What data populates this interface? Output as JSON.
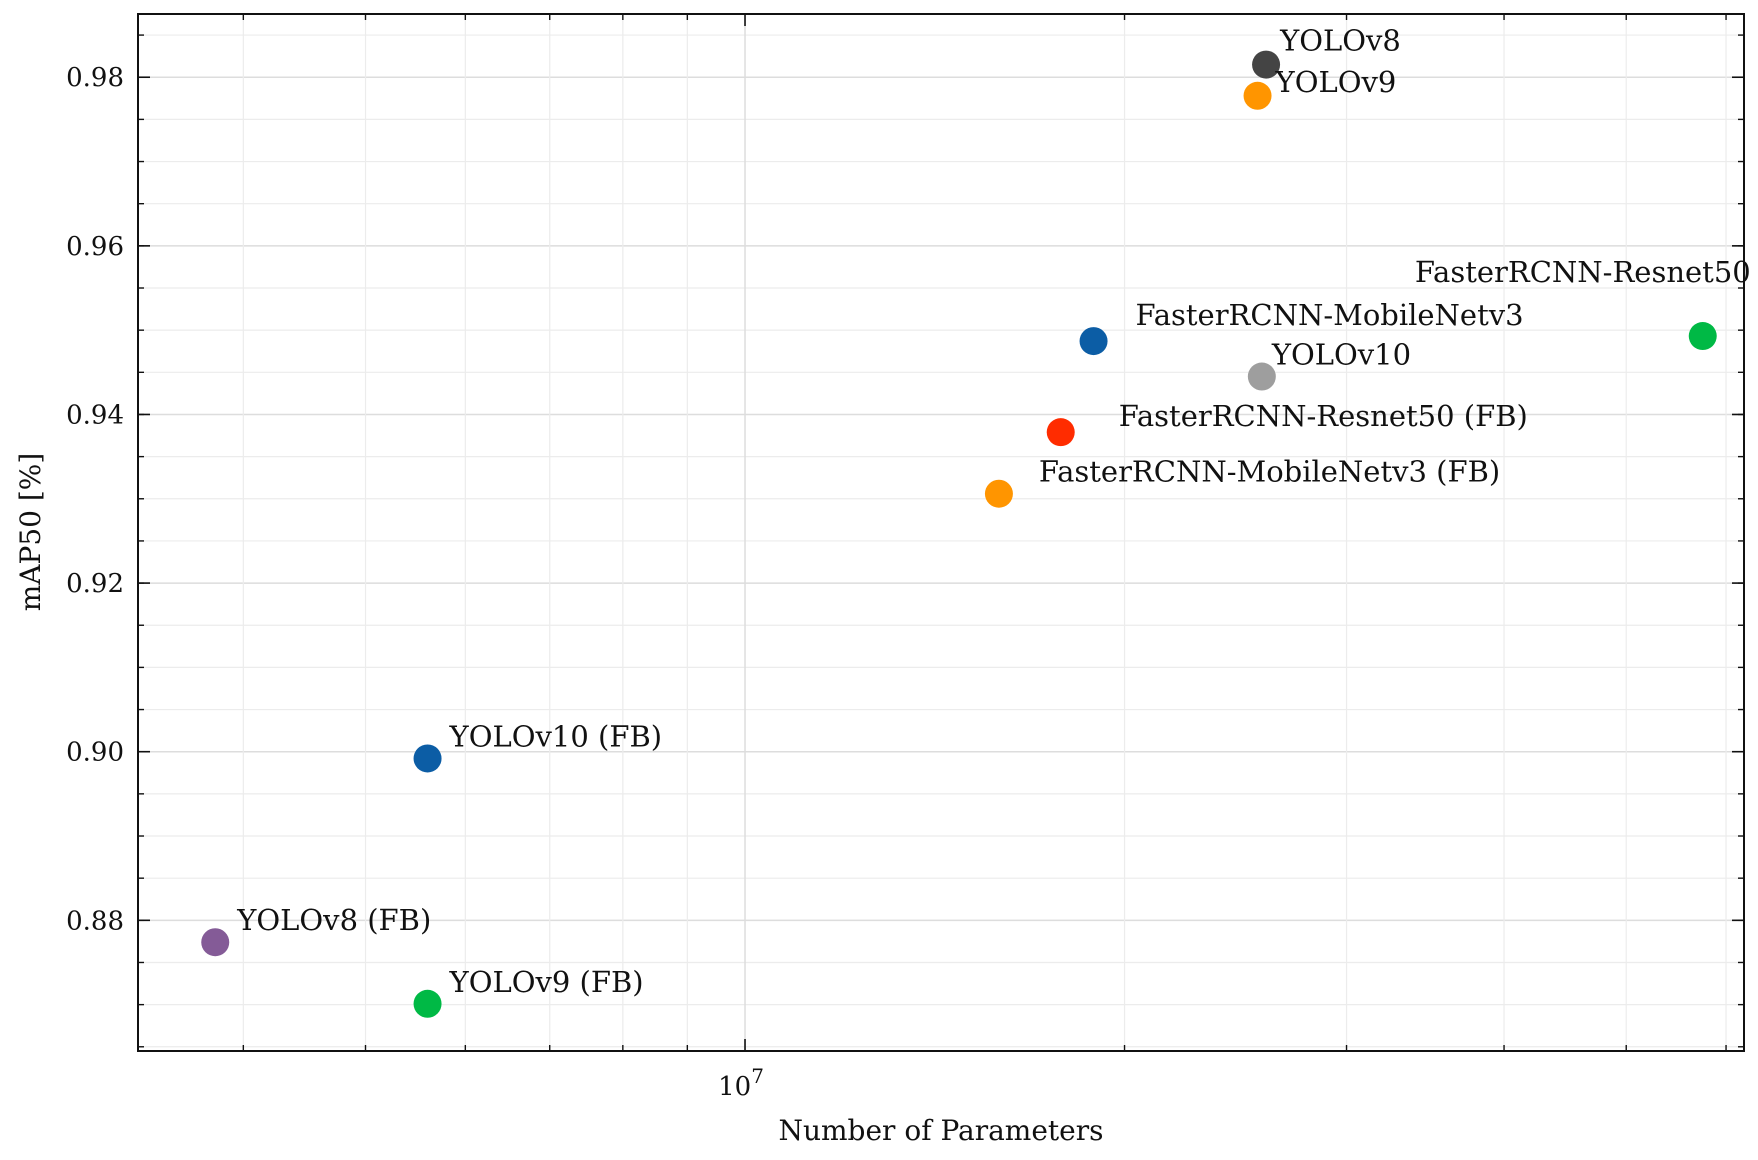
{
  "chart_data": {
    "type": "scatter",
    "title": "",
    "xlabel": "Number of Parameters",
    "ylabel": "mAP50 [%]",
    "x_scale": "log",
    "xlim": [
      3300000,
      62000000
    ],
    "ylim": [
      0.8645,
      0.9875
    ],
    "grid": true,
    "y_ticks": [
      {
        "value": 0.88,
        "label": "0.88"
      },
      {
        "value": 0.9,
        "label": "0.90"
      },
      {
        "value": 0.92,
        "label": "0.92"
      },
      {
        "value": 0.94,
        "label": "0.94"
      },
      {
        "value": 0.96,
        "label": "0.96"
      },
      {
        "value": 0.98,
        "label": "0.98"
      }
    ],
    "y_minor_step": 0.005,
    "x_major_ticks": [
      {
        "value": 10000000,
        "base": "10",
        "exp": "7"
      }
    ],
    "x_minor_ticks": [
      4000000,
      5000000,
      6000000,
      7000000,
      8000000,
      9000000,
      20000000,
      30000000,
      40000000,
      50000000,
      60000000
    ],
    "points": [
      {
        "label": "YOLOv8",
        "x": 25900000,
        "y": 0.9815,
        "color": "#444444"
      },
      {
        "label": "YOLOv9",
        "x": 25500000,
        "y": 0.9778,
        "color": "#FF9500"
      },
      {
        "label": "FasterRCNN-Resnet50",
        "x": 57500000,
        "y": 0.9493,
        "color": "#00B945"
      },
      {
        "label": "FasterRCNN-MobileNetv3",
        "x": 18900000,
        "y": 0.9487,
        "color": "#0C5DA5"
      },
      {
        "label": "YOLOv10",
        "x": 25700000,
        "y": 0.9445,
        "color": "#9E9E9E"
      },
      {
        "label": "FasterRCNN-Resnet50 (FB)",
        "x": 17800000,
        "y": 0.9379,
        "color": "#FF2C00"
      },
      {
        "label": "FasterRCNN-MobileNetv3 (FB)",
        "x": 15900000,
        "y": 0.9306,
        "color": "#FF9500"
      },
      {
        "label": "YOLOv10 (FB)",
        "x": 5600000,
        "y": 0.8992,
        "color": "#0C5DA5"
      },
      {
        "label": "YOLOv8 (FB)",
        "x": 3800000,
        "y": 0.8774,
        "color": "#845B97"
      },
      {
        "label": "YOLOv9 (FB)",
        "x": 5600000,
        "y": 0.8701,
        "color": "#00B945"
      }
    ]
  }
}
